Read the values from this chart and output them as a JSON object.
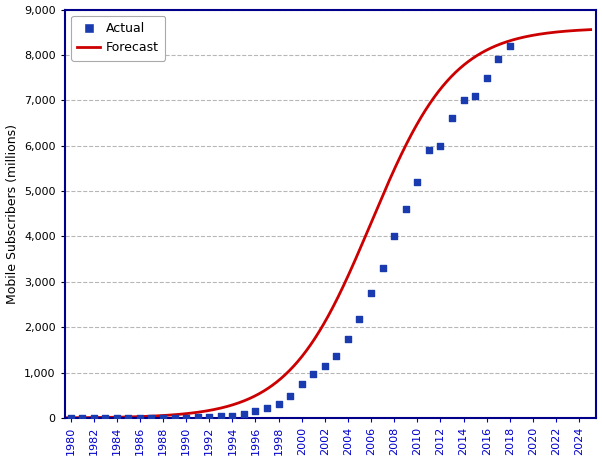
{
  "actual_years": [
    1980,
    1981,
    1982,
    1983,
    1984,
    1985,
    1986,
    1987,
    1988,
    1989,
    1990,
    1991,
    1992,
    1993,
    1994,
    1995,
    1996,
    1997,
    1998,
    1999,
    2000,
    2001,
    2002,
    2003,
    2004,
    2005,
    2006,
    2007,
    2008,
    2009,
    2010,
    2011,
    2012,
    2013,
    2014,
    2015,
    2016,
    2017,
    2018
  ],
  "actual_values": [
    0.5,
    0.6,
    0.7,
    0.9,
    1.2,
    1.6,
    2.5,
    3.8,
    5.5,
    7.5,
    11.0,
    16.0,
    23.0,
    34.0,
    55.0,
    90.0,
    145.0,
    215.0,
    320.0,
    490.0,
    740.0,
    960.0,
    1150.0,
    1360.0,
    1750.0,
    2190.0,
    2750.0,
    3300.0,
    4000.0,
    4600.0,
    5200.0,
    5900.0,
    6000.0,
    6600.0,
    7000.0,
    7100.0,
    7500.0,
    7900.0,
    8200.0
  ],
  "forecast_x_start": 1979,
  "forecast_x_end": 2025,
  "logistic_L": 8600.0,
  "logistic_k": 0.28,
  "logistic_x0": 2006.0,
  "ylabel": "Mobile Subscribers (millions)",
  "ylim": [
    0,
    9000
  ],
  "xlim": [
    1979.5,
    2025.5
  ],
  "yticks": [
    0,
    1000,
    2000,
    3000,
    4000,
    5000,
    6000,
    7000,
    8000,
    9000
  ],
  "xticks": [
    1980,
    1982,
    1984,
    1986,
    1988,
    1990,
    1992,
    1994,
    1996,
    1998,
    2000,
    2002,
    2004,
    2006,
    2008,
    2010,
    2012,
    2014,
    2016,
    2018,
    2020,
    2022,
    2024
  ],
  "dot_color": "#1a3ab0",
  "dot_marker": "s",
  "dot_size": 22,
  "line_color": "#cc0000",
  "line_width": 2.0,
  "grid_color": "#888888",
  "grid_style": "--",
  "grid_alpha": 0.6,
  "axis_spine_color": "#00008b",
  "tick_color_x": "#0000cc",
  "tick_color_y": "#000000",
  "background_color": "#ffffff",
  "legend_actual": "Actual",
  "legend_forecast": "Forecast",
  "ylabel_fontsize": 9,
  "tick_fontsize": 8
}
